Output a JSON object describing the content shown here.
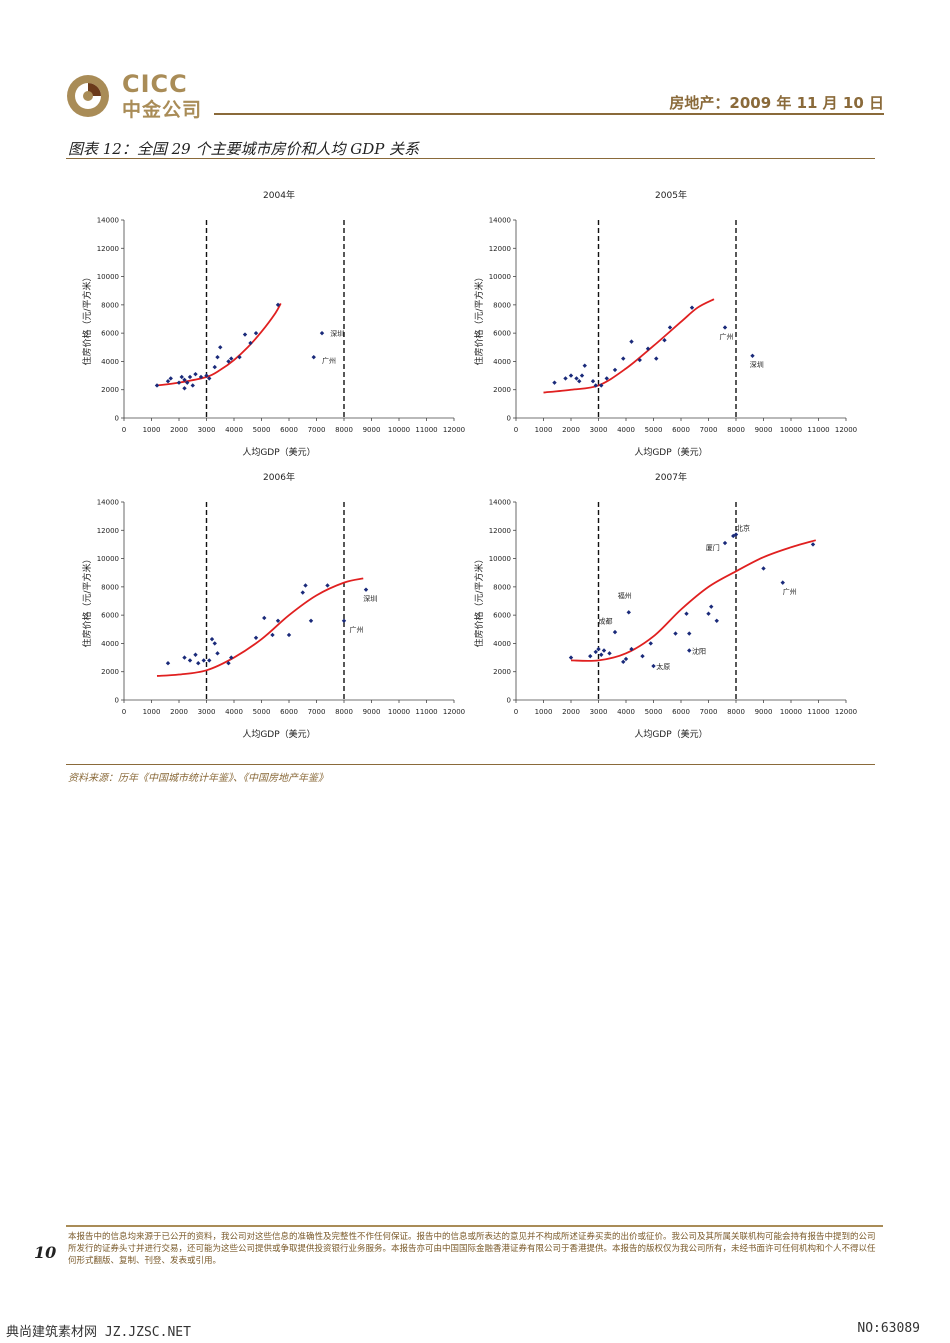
{
  "header": {
    "logo_en": "CICC",
    "logo_cn": "中金公司",
    "date_line": "房地产：2009 年 11 月 10 日"
  },
  "figure": {
    "title": "图表 12：全国 29 个主要城市房价和人均 GDP 关系",
    "source": "资料来源：历年《中国城市统计年鉴》、《中国房地产年鉴》"
  },
  "chart_data": [
    {
      "type": "scatter",
      "title": "2004年",
      "xlabel": "人均GDP（美元）",
      "ylabel": "住房价格（元/平方米）",
      "xlim": [
        0,
        12000
      ],
      "ylim": [
        0,
        14000
      ],
      "xticks": [
        "0",
        "1000",
        "2000",
        "3000",
        "4000",
        "5000",
        "6000",
        "7000",
        "8000",
        "9000",
        "10000",
        "11000",
        "12000"
      ],
      "yticks": [
        "0",
        "2000",
        "4000",
        "6000",
        "8000",
        "10000",
        "12000",
        "14000"
      ],
      "vlines": [
        3000,
        8000
      ],
      "points": [
        [
          1200,
          2300
        ],
        [
          1600,
          2600
        ],
        [
          1700,
          2800
        ],
        [
          2000,
          2500
        ],
        [
          2100,
          2900
        ],
        [
          2200,
          2700
        ],
        [
          2200,
          2100
        ],
        [
          2300,
          2500
        ],
        [
          2400,
          2900
        ],
        [
          2500,
          2300
        ],
        [
          2600,
          3100
        ],
        [
          2800,
          2900
        ],
        [
          3000,
          3000
        ],
        [
          3100,
          2800
        ],
        [
          3300,
          3600
        ],
        [
          3400,
          4300
        ],
        [
          3500,
          5000
        ],
        [
          3800,
          4000
        ],
        [
          3900,
          4200
        ],
        [
          4200,
          4300
        ],
        [
          4400,
          5900
        ],
        [
          4600,
          5300
        ],
        [
          4800,
          6000
        ],
        [
          5600,
          8000
        ],
        [
          6900,
          4300
        ],
        [
          7200,
          6000
        ]
      ],
      "curve": [
        [
          1200,
          2300
        ],
        [
          2000,
          2500
        ],
        [
          3000,
          2900
        ],
        [
          3500,
          3400
        ],
        [
          4000,
          4100
        ],
        [
          4500,
          5000
        ],
        [
          5000,
          6100
        ],
        [
          5500,
          7400
        ],
        [
          5700,
          8100
        ]
      ],
      "labels": [
        {
          "text": "深圳",
          "x": 7500,
          "y": 5800
        },
        {
          "text": "广州",
          "x": 7200,
          "y": 3900
        }
      ]
    },
    {
      "type": "scatter",
      "title": "2005年",
      "xlabel": "人均GDP（美元）",
      "ylabel": "住房价格（元/平方米）",
      "xlim": [
        0,
        12000
      ],
      "ylim": [
        0,
        14000
      ],
      "xticks": [
        "0",
        "1000",
        "2000",
        "3000",
        "4000",
        "5000",
        "6000",
        "7000",
        "8000",
        "9000",
        "10000",
        "11000",
        "12000"
      ],
      "yticks": [
        "0",
        "2000",
        "4000",
        "6000",
        "8000",
        "10000",
        "12000",
        "14000"
      ],
      "vlines": [
        3000,
        8000
      ],
      "points": [
        [
          1400,
          2500
        ],
        [
          1800,
          2800
        ],
        [
          2000,
          3000
        ],
        [
          2200,
          2800
        ],
        [
          2300,
          2600
        ],
        [
          2400,
          3000
        ],
        [
          2500,
          3700
        ],
        [
          2800,
          2600
        ],
        [
          2900,
          2300
        ],
        [
          3100,
          2300
        ],
        [
          3300,
          2800
        ],
        [
          3600,
          3400
        ],
        [
          3900,
          4200
        ],
        [
          4200,
          5400
        ],
        [
          4500,
          4100
        ],
        [
          4800,
          4900
        ],
        [
          5100,
          4200
        ],
        [
          5400,
          5500
        ],
        [
          5600,
          6400
        ],
        [
          6400,
          7800
        ],
        [
          7600,
          6400
        ],
        [
          8600,
          4400
        ]
      ],
      "curve": [
        [
          1000,
          1800
        ],
        [
          2000,
          2000
        ],
        [
          3000,
          2300
        ],
        [
          4000,
          3500
        ],
        [
          5000,
          5100
        ],
        [
          6000,
          6800
        ],
        [
          6600,
          7800
        ],
        [
          7200,
          8400
        ]
      ],
      "labels": [
        {
          "text": "广州",
          "x": 7400,
          "y": 5600
        },
        {
          "text": "深圳",
          "x": 8500,
          "y": 3600
        }
      ]
    },
    {
      "type": "scatter",
      "title": "2006年",
      "xlabel": "人均GDP（美元）",
      "ylabel": "住房价格（元/平方米）",
      "xlim": [
        0,
        12000
      ],
      "ylim": [
        0,
        14000
      ],
      "xticks": [
        "0",
        "1000",
        "2000",
        "3000",
        "4000",
        "5000",
        "6000",
        "7000",
        "8000",
        "9000",
        "10000",
        "11000",
        "12000"
      ],
      "yticks": [
        "0",
        "2000",
        "4000",
        "6000",
        "8000",
        "10000",
        "12000",
        "14000"
      ],
      "vlines": [
        3000,
        8000
      ],
      "points": [
        [
          1600,
          2600
        ],
        [
          2200,
          3000
        ],
        [
          2400,
          2800
        ],
        [
          2600,
          3200
        ],
        [
          2700,
          2600
        ],
        [
          2900,
          2800
        ],
        [
          3100,
          2800
        ],
        [
          3200,
          4300
        ],
        [
          3300,
          4000
        ],
        [
          3400,
          3300
        ],
        [
          3800,
          2600
        ],
        [
          3900,
          3000
        ],
        [
          4800,
          4400
        ],
        [
          5100,
          5800
        ],
        [
          5400,
          4600
        ],
        [
          5600,
          5600
        ],
        [
          6000,
          4600
        ],
        [
          6500,
          7600
        ],
        [
          6600,
          8100
        ],
        [
          6800,
          5600
        ],
        [
          7400,
          8100
        ],
        [
          8000,
          5600
        ],
        [
          8800,
          7800
        ]
      ],
      "curve": [
        [
          1200,
          1700
        ],
        [
          2000,
          1800
        ],
        [
          3000,
          2100
        ],
        [
          4000,
          3000
        ],
        [
          5000,
          4300
        ],
        [
          6000,
          6000
        ],
        [
          7000,
          7400
        ],
        [
          8000,
          8300
        ],
        [
          8700,
          8600
        ]
      ],
      "labels": [
        {
          "text": "深圳",
          "x": 8700,
          "y": 7000
        },
        {
          "text": "广州",
          "x": 8200,
          "y": 4800
        }
      ]
    },
    {
      "type": "scatter",
      "title": "2007年",
      "xlabel": "人均GDP（美元）",
      "ylabel": "住房价格（元/平方米）",
      "xlim": [
        0,
        12000
      ],
      "ylim": [
        0,
        14000
      ],
      "xticks": [
        "0",
        "1000",
        "2000",
        "3000",
        "4000",
        "5000",
        "6000",
        "7000",
        "8000",
        "9000",
        "10000",
        "11000",
        "12000"
      ],
      "yticks": [
        "0",
        "2000",
        "4000",
        "6000",
        "8000",
        "10000",
        "12000",
        "14000"
      ],
      "vlines": [
        3000,
        8000
      ],
      "points": [
        [
          2000,
          3000
        ],
        [
          2700,
          3100
        ],
        [
          2900,
          3400
        ],
        [
          3000,
          3600
        ],
        [
          3100,
          3200
        ],
        [
          3200,
          3500
        ],
        [
          3400,
          3300
        ],
        [
          3600,
          4800
        ],
        [
          3900,
          2700
        ],
        [
          4000,
          2900
        ],
        [
          4100,
          6200
        ],
        [
          4200,
          3600
        ],
        [
          4600,
          3100
        ],
        [
          4900,
          4000
        ],
        [
          5000,
          2400
        ],
        [
          5800,
          4700
        ],
        [
          6200,
          6100
        ],
        [
          6300,
          4700
        ],
        [
          6300,
          3500
        ],
        [
          7000,
          6100
        ],
        [
          7100,
          6600
        ],
        [
          7300,
          5600
        ],
        [
          7600,
          11100
        ],
        [
          7900,
          11600
        ],
        [
          8000,
          11700
        ],
        [
          9000,
          9300
        ],
        [
          9700,
          8300
        ],
        [
          10800,
          11000
        ]
      ],
      "curve": [
        [
          2000,
          2800
        ],
        [
          3000,
          2800
        ],
        [
          4000,
          3300
        ],
        [
          5000,
          4500
        ],
        [
          6000,
          6400
        ],
        [
          7000,
          8000
        ],
        [
          8000,
          9100
        ],
        [
          9000,
          10100
        ],
        [
          10000,
          10800
        ],
        [
          10900,
          11300
        ]
      ],
      "labels": [
        {
          "text": "北京",
          "x": 8000,
          "y": 12000
        },
        {
          "text": "厦门",
          "x": 6900,
          "y": 10600
        },
        {
          "text": "福州",
          "x": 3700,
          "y": 7200
        },
        {
          "text": "成都",
          "x": 3000,
          "y": 5400
        },
        {
          "text": "沈阳",
          "x": 6400,
          "y": 3300
        },
        {
          "text": "太原",
          "x": 5100,
          "y": 2200
        },
        {
          "text": "广州",
          "x": 9700,
          "y": 7500
        }
      ]
    }
  ],
  "footer": {
    "page_number": "10",
    "disclaimer": "本报告中的信息均来源于已公开的资料，我公司对这些信息的准确性及完整性不作任何保证。报告中的信息或所表达的意见并不构成所述证券买卖的出价或征价。我公司及其所属关联机构可能会持有报告中提到的公司所发行的证券头寸并进行交易，还可能为这些公司提供或争取提供投资银行业务服务。本报告亦可由中国国际金融香港证券有限公司于香港提供。本报告的版权仅为我公司所有，未经书面许可任何机构和个人不得以任何形式翻版、复制、刊登、发表或引用。",
    "watermark_left": "典尚建筑素材网 JZ.JZSC.NET",
    "watermark_right": "NO:63089"
  },
  "colors": {
    "brand": "#a98c57",
    "rule": "#8a6a3a",
    "point": "#1a2a7a",
    "curve": "#e02020"
  }
}
